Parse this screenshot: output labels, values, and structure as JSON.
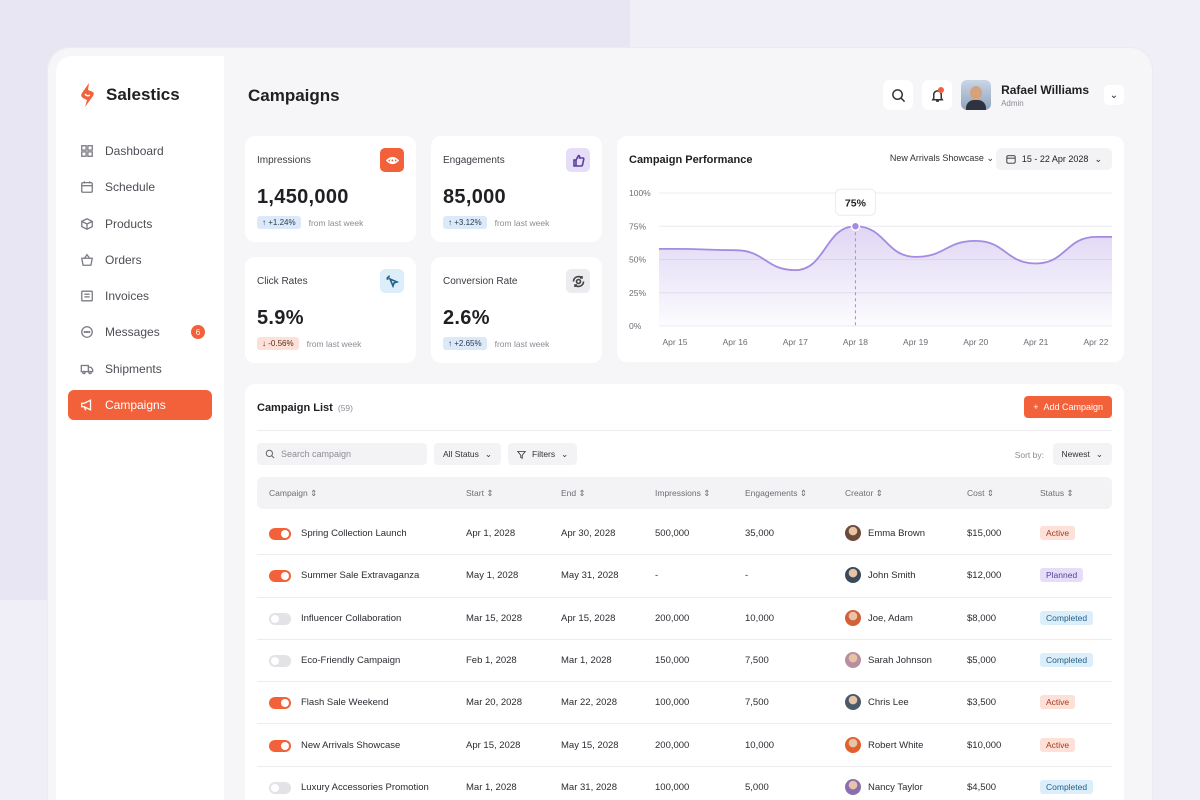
{
  "app": {
    "name": "Salestics"
  },
  "sidebar": {
    "items": [
      {
        "label": "Dashboard",
        "icon": "grid-icon"
      },
      {
        "label": "Schedule",
        "icon": "calendar-icon"
      },
      {
        "label": "Products",
        "icon": "box-icon"
      },
      {
        "label": "Orders",
        "icon": "basket-icon"
      },
      {
        "label": "Invoices",
        "icon": "invoice-icon"
      },
      {
        "label": "Messages",
        "icon": "message-icon",
        "badge": "6"
      },
      {
        "label": "Shipments",
        "icon": "truck-icon"
      },
      {
        "label": "Campaigns",
        "icon": "megaphone-icon",
        "active": true
      }
    ]
  },
  "header": {
    "title": "Campaigns",
    "user": {
      "name": "Rafael Williams",
      "role": "Admin"
    }
  },
  "stats": [
    {
      "label": "Impressions",
      "value": "1,450,000",
      "delta": "+1.24%",
      "direction": "up",
      "note": "from last week",
      "icon": "eye-icon",
      "icon_bg": "#f2613a"
    },
    {
      "label": "Engagements",
      "value": "85,000",
      "delta": "+3.12%",
      "direction": "up",
      "note": "from last week",
      "icon": "thumbs-up-icon",
      "icon_bg": "#e6def8"
    },
    {
      "label": "Click Rates",
      "value": "5.9%",
      "delta": "-0.56%",
      "direction": "down",
      "note": "from last week",
      "icon": "cursor-click-icon",
      "icon_bg": "#dbeefa"
    },
    {
      "label": "Conversion Rate",
      "value": "2.6%",
      "delta": "+2.65%",
      "direction": "up",
      "note": "from last week",
      "icon": "conversion-icon",
      "icon_bg": "#ececf0"
    }
  ],
  "performance": {
    "title": "Campaign Performance",
    "filter": "New Arrivals Showcase",
    "date_range": "15 - 22 Apr 2028",
    "tooltip": "75%"
  },
  "chart_data": {
    "type": "area",
    "title": "Campaign Performance",
    "x": [
      "Apr 15",
      "Apr 16",
      "Apr 17",
      "Apr 18",
      "Apr 19",
      "Apr 20",
      "Apr 21",
      "Apr 22"
    ],
    "y_ticks": [
      "100%",
      "75%",
      "50%",
      "25%",
      "0%"
    ],
    "ylim": [
      0,
      100
    ],
    "series": [
      {
        "values": [
          58,
          57,
          42,
          75,
          52,
          64,
          47,
          67
        ]
      }
    ],
    "highlight": {
      "x": "Apr 18",
      "value": 75
    },
    "grid": true,
    "color": "#a48be0"
  },
  "list": {
    "title": "Campaign List",
    "count": "(59)",
    "add_label": "Add Campaign",
    "search_placeholder": "Search campaign",
    "status_filter": "All Status",
    "filters_label": "Filters",
    "sort_label": "Sort by:",
    "sort_value": "Newest",
    "columns": [
      "Campaign",
      "Start",
      "End",
      "Impressions",
      "Engagements",
      "Creator",
      "Cost",
      "Status"
    ],
    "rows": [
      {
        "on": true,
        "name": "Spring Collection Launch",
        "start": "Apr 1, 2028",
        "end": "Apr 30, 2028",
        "impressions": "500,000",
        "engagements": "35,000",
        "creator": "Emma Brown",
        "cost": "$15,000",
        "status": "Active",
        "avatar": "#6b4a3a"
      },
      {
        "on": true,
        "name": "Summer Sale Extravaganza",
        "start": "May 1, 2028",
        "end": "May 31, 2028",
        "impressions": "-",
        "engagements": "-",
        "creator": "John Smith",
        "cost": "$12,000",
        "status": "Planned",
        "avatar": "#3a4a5a"
      },
      {
        "on": false,
        "name": "Influencer Collaboration",
        "start": "Mar 15, 2028",
        "end": "Apr 15, 2028",
        "impressions": "200,000",
        "engagements": "10,000",
        "creator": "Joe, Adam",
        "cost": "$8,000",
        "status": "Completed",
        "avatar": "#d2613a"
      },
      {
        "on": false,
        "name": "Eco-Friendly Campaign",
        "start": "Feb 1, 2028",
        "end": "Mar 1, 2028",
        "impressions": "150,000",
        "engagements": "7,500",
        "creator": "Sarah Johnson",
        "cost": "$5,000",
        "status": "Completed",
        "avatar": "#b78fa0"
      },
      {
        "on": true,
        "name": "Flash Sale Weekend",
        "start": "Mar 20, 2028",
        "end": "Mar 22, 2028",
        "impressions": "100,000",
        "engagements": "7,500",
        "creator": "Chris Lee",
        "cost": "$3,500",
        "status": "Active",
        "avatar": "#4a5a6a"
      },
      {
        "on": true,
        "name": "New Arrivals Showcase",
        "start": "Apr 15, 2028",
        "end": "May 15, 2028",
        "impressions": "200,000",
        "engagements": "10,000",
        "creator": "Robert White",
        "cost": "$10,000",
        "status": "Active",
        "avatar": "#e0602e"
      },
      {
        "on": false,
        "name": "Luxury Accessories Promotion",
        "start": "Mar 1, 2028",
        "end": "Mar 31, 2028",
        "impressions": "100,000",
        "engagements": "5,000",
        "creator": "Nancy Taylor",
        "cost": "$4,500",
        "status": "Completed",
        "avatar": "#8a6fb0"
      }
    ]
  }
}
